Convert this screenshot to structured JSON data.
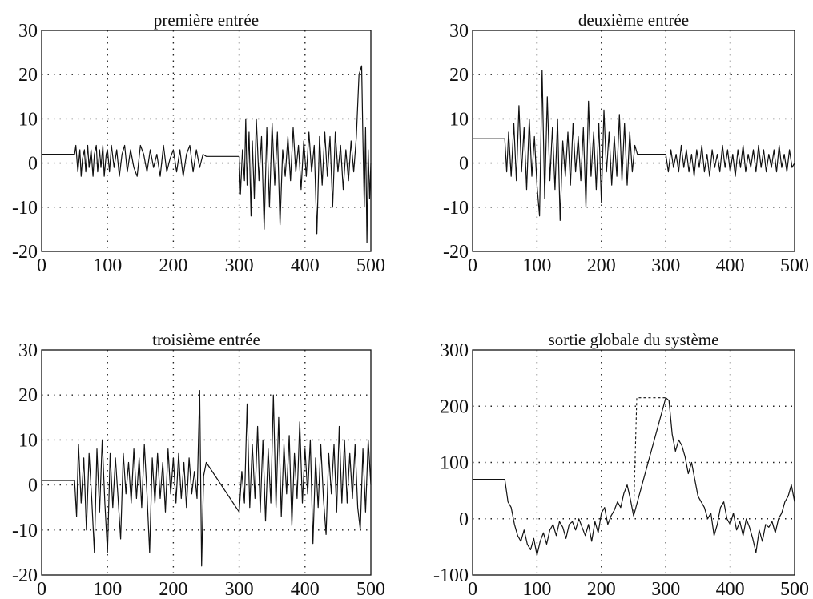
{
  "chart_data": [
    {
      "type": "line",
      "title": "première entrée",
      "xlim": [
        0,
        500
      ],
      "ylim": [
        -20,
        30
      ],
      "xticks": [
        0,
        100,
        200,
        300,
        400,
        500
      ],
      "yticks": [
        30,
        20,
        10,
        0,
        -10,
        -20
      ],
      "xtick_labels": [
        "0",
        "100",
        "200",
        "300",
        "400",
        "500"
      ],
      "ytick_labels": [
        "30",
        "20",
        "10",
        "0",
        "-10",
        "-20"
      ],
      "grid": true,
      "series": [
        {
          "x": [
            0,
            50,
            52,
            55,
            58,
            60,
            62,
            65,
            67,
            70,
            72,
            75,
            78,
            80,
            83,
            85,
            88,
            90,
            93,
            95,
            98,
            100,
            103,
            106,
            110,
            114,
            118,
            122,
            126,
            130,
            135,
            140,
            145,
            150,
            155,
            160,
            165,
            170,
            175,
            180,
            185,
            190,
            195,
            200,
            205,
            210,
            215,
            220,
            225,
            230,
            235,
            240,
            245,
            250,
            300,
            302,
            305,
            308,
            310,
            312,
            315,
            318,
            320,
            323,
            326,
            330,
            334,
            338,
            342,
            346,
            350,
            354,
            358,
            362,
            366,
            370,
            374,
            378,
            382,
            386,
            390,
            394,
            398,
            402,
            406,
            410,
            414,
            418,
            422,
            426,
            430,
            434,
            438,
            442,
            446,
            450,
            454,
            458,
            462,
            466,
            470,
            474,
            478,
            482,
            486,
            488,
            490,
            492,
            494,
            496,
            498,
            500
          ],
          "y": [
            2,
            2,
            4,
            -2,
            3,
            -3,
            1,
            3,
            -2,
            4,
            -1,
            3,
            -3,
            2,
            4,
            -2,
            3,
            -1,
            4,
            -3,
            2,
            3,
            -2,
            4,
            -1,
            3,
            -3,
            2,
            4,
            -2,
            3,
            -1,
            -3,
            4,
            2,
            -2,
            3,
            -1,
            2,
            -3,
            4,
            -2,
            1,
            3,
            -2,
            3,
            -3,
            2,
            4,
            -2,
            3,
            -1,
            2,
            1.5,
            1.5,
            -7,
            3,
            -4,
            10,
            -5,
            7,
            -12,
            5,
            -8,
            10,
            -4,
            6,
            -15,
            8,
            -10,
            9,
            -5,
            7,
            -14,
            3,
            -3,
            6,
            -4,
            8,
            -2,
            4,
            -6,
            5,
            -3,
            7,
            -2,
            4,
            -16,
            6,
            -5,
            7,
            -3,
            6,
            -10,
            7,
            -2,
            4,
            -6,
            3,
            -4,
            5,
            -2,
            6,
            20,
            22,
            5,
            -10,
            8,
            -18,
            3,
            -8,
            0
          ]
        }
      ]
    },
    {
      "type": "line",
      "title": "deuxième entrée",
      "xlim": [
        0,
        500
      ],
      "ylim": [
        -20,
        30
      ],
      "xticks": [
        0,
        100,
        200,
        300,
        400,
        500
      ],
      "yticks": [
        30,
        20,
        10,
        0,
        -10,
        -20
      ],
      "xtick_labels": [
        "0",
        "100",
        "200",
        "300",
        "400",
        "500"
      ],
      "ytick_labels": [
        "30",
        "20",
        "10",
        "0",
        "-10",
        "-20"
      ],
      "grid": true,
      "series": [
        {
          "x": [
            0,
            50,
            53,
            56,
            60,
            64,
            68,
            72,
            76,
            80,
            84,
            88,
            92,
            96,
            100,
            104,
            108,
            112,
            116,
            120,
            124,
            128,
            132,
            136,
            140,
            144,
            148,
            152,
            156,
            160,
            164,
            168,
            172,
            176,
            180,
            184,
            188,
            192,
            196,
            200,
            204,
            208,
            212,
            216,
            220,
            224,
            228,
            232,
            236,
            240,
            244,
            248,
            252,
            256,
            260,
            300,
            304,
            308,
            312,
            316,
            320,
            324,
            328,
            332,
            336,
            340,
            344,
            348,
            352,
            356,
            360,
            364,
            368,
            372,
            376,
            380,
            384,
            388,
            392,
            396,
            400,
            404,
            408,
            412,
            416,
            420,
            424,
            428,
            432,
            436,
            440,
            444,
            448,
            452,
            456,
            460,
            464,
            468,
            472,
            476,
            480,
            484,
            488,
            492,
            496,
            500
          ],
          "y": [
            5.5,
            5.5,
            -2,
            7,
            -3,
            9,
            -4,
            13,
            -2,
            8,
            -6,
            10,
            -3,
            6,
            -5,
            -12,
            21,
            -8,
            15,
            -4,
            8,
            -6,
            10,
            -13,
            5,
            -3,
            7,
            -5,
            9,
            -2,
            6,
            -4,
            8,
            -10,
            14,
            -3,
            7,
            -6,
            9,
            -9,
            12,
            -2,
            7,
            -5,
            6,
            -3,
            11,
            -4,
            9,
            -5,
            7,
            -2,
            4,
            2,
            2,
            2,
            -2,
            3,
            -1,
            2,
            -2,
            4,
            -1,
            3,
            -2,
            2,
            -3,
            3,
            -1,
            4,
            -2,
            2,
            -3,
            3,
            -1,
            2,
            -2,
            4,
            -1,
            3,
            -2,
            2,
            -3,
            3,
            -1,
            4,
            -2,
            2,
            -1,
            3,
            -2,
            4,
            -1,
            3,
            -2,
            2,
            -1,
            3,
            -2,
            4,
            -1,
            2,
            -2,
            3,
            -1,
            0
          ]
        }
      ]
    },
    {
      "type": "line",
      "title": "troisième entrée",
      "xlim": [
        0,
        500
      ],
      "ylim": [
        -20,
        30
      ],
      "xticks": [
        0,
        100,
        200,
        300,
        400,
        500
      ],
      "yticks": [
        30,
        20,
        10,
        0,
        -10,
        -20
      ],
      "xtick_labels": [
        "0",
        "100",
        "200",
        "300",
        "400",
        "500"
      ],
      "ytick_labels": [
        "30",
        "20",
        "10",
        "0",
        "-10",
        "-20"
      ],
      "grid": true,
      "series": [
        {
          "x": [
            0,
            50,
            53,
            56,
            60,
            64,
            68,
            72,
            76,
            80,
            84,
            88,
            92,
            96,
            100,
            104,
            108,
            112,
            116,
            120,
            124,
            128,
            132,
            136,
            140,
            144,
            148,
            152,
            156,
            160,
            164,
            168,
            172,
            176,
            180,
            184,
            188,
            192,
            196,
            200,
            204,
            208,
            212,
            216,
            220,
            224,
            228,
            232,
            236,
            240,
            243,
            246,
            250,
            300,
            304,
            308,
            312,
            316,
            320,
            324,
            328,
            332,
            336,
            340,
            344,
            348,
            352,
            356,
            360,
            364,
            368,
            372,
            376,
            380,
            384,
            388,
            392,
            396,
            400,
            404,
            408,
            412,
            416,
            420,
            424,
            428,
            432,
            436,
            440,
            444,
            448,
            452,
            456,
            460,
            464,
            468,
            472,
            476,
            480,
            484,
            488,
            492,
            496,
            500
          ],
          "y": [
            1,
            1,
            -7,
            9,
            -4,
            6,
            -10,
            7,
            -3,
            -15,
            8,
            -6,
            10,
            -4,
            -15,
            7,
            -5,
            6,
            -3,
            -12,
            7,
            -2,
            5,
            -4,
            8,
            -3,
            6,
            -5,
            9,
            -2,
            -15,
            6,
            -4,
            7,
            -3,
            5,
            -6,
            8,
            -2,
            6,
            -4,
            7,
            -3,
            5,
            -5,
            6,
            -2,
            3,
            -3,
            21,
            -18,
            2,
            5,
            -6,
            3,
            -4,
            18,
            -5,
            9,
            -3,
            13,
            -6,
            10,
            -8,
            8,
            -4,
            20,
            -5,
            15,
            -7,
            9,
            -2,
            11,
            -9,
            7,
            -3,
            14,
            -4,
            8,
            -2,
            10,
            -13,
            6,
            -5,
            9,
            -3,
            -11,
            7,
            -2,
            9,
            -6,
            13,
            -4,
            10,
            -4,
            7,
            -3,
            9,
            -5,
            -10,
            8,
            -6,
            10,
            0
          ]
        }
      ]
    },
    {
      "type": "line",
      "title": "sortie globale du système",
      "xlim": [
        0,
        500
      ],
      "ylim": [
        -100,
        300
      ],
      "xticks": [
        0,
        100,
        200,
        300,
        400,
        500
      ],
      "yticks": [
        300,
        200,
        100,
        0,
        -100
      ],
      "xtick_labels": [
        "0",
        "100",
        "200",
        "300",
        "400",
        "500"
      ],
      "ytick_labels": [
        "300",
        "200",
        "100",
        "0",
        "-100"
      ],
      "grid": true,
      "series": [
        {
          "x": [
            0,
            50,
            55,
            60,
            65,
            70,
            75,
            80,
            85,
            90,
            95,
            100,
            105,
            110,
            115,
            120,
            125,
            130,
            135,
            140,
            145,
            150,
            155,
            160,
            165,
            170,
            175,
            180,
            185,
            190,
            195,
            200,
            205,
            210,
            215,
            220,
            225,
            230,
            235,
            240,
            245,
            250,
            300,
            305,
            310,
            315,
            320,
            325,
            330,
            335,
            340,
            345,
            350,
            355,
            360,
            365,
            370,
            375,
            380,
            385,
            390,
            395,
            400,
            405,
            410,
            415,
            420,
            425,
            430,
            435,
            440,
            445,
            450,
            455,
            460,
            465,
            470,
            475,
            480,
            485,
            490,
            495,
            500
          ],
          "y": [
            70,
            70,
            30,
            20,
            -10,
            -30,
            -40,
            -20,
            -45,
            -55,
            -35,
            -65,
            -40,
            -25,
            -45,
            -20,
            -10,
            -30,
            -5,
            -15,
            -35,
            -10,
            -5,
            -20,
            0,
            -15,
            -30,
            -10,
            -40,
            -5,
            -25,
            10,
            20,
            -10,
            5,
            15,
            30,
            20,
            45,
            60,
            35,
            5,
            215,
            210,
            150,
            120,
            140,
            130,
            110,
            80,
            100,
            70,
            40,
            30,
            20,
            0,
            10,
            -30,
            -10,
            20,
            30,
            0,
            -10,
            10,
            -20,
            -5,
            -30,
            0,
            -15,
            -35,
            -60,
            -20,
            -40,
            -10,
            -15,
            -5,
            -25,
            0,
            10,
            30,
            40,
            60,
            30
          ]
        },
        {
          "x": [
            250,
            255,
            300
          ],
          "y": [
            5,
            215,
            215
          ]
        }
      ]
    }
  ]
}
